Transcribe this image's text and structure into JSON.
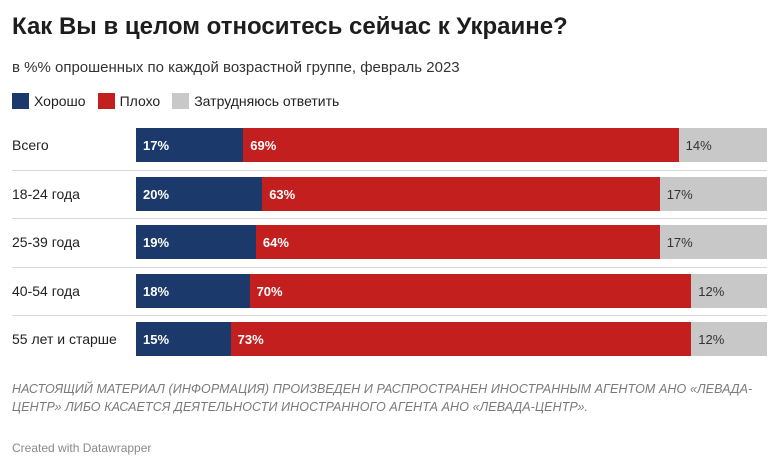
{
  "title": "Как Вы в целом относитесь сейчас к Украине?",
  "subtitle": "в %% опрошенных по каждой возрастной группе, февраль 2023",
  "colors": {
    "good": "#1b3a6b",
    "bad": "#c41f1f",
    "unsure": "#c8c8c8"
  },
  "chart_data": {
    "type": "bar",
    "orientation": "horizontal",
    "stacked": true,
    "normalized": true,
    "categories": [
      "Всего",
      "18-24 года",
      "25-39 года",
      "40-54 года",
      "55 лет и старше"
    ],
    "series": [
      {
        "name": "Хорошо",
        "values": [
          17,
          20,
          19,
          18,
          15
        ]
      },
      {
        "name": "Плохо",
        "values": [
          69,
          63,
          64,
          70,
          73
        ]
      },
      {
        "name": "Затрудняюсь ответить",
        "values": [
          14,
          17,
          17,
          12,
          12
        ]
      }
    ],
    "value_labels": [
      [
        "17%",
        "69%",
        "14%"
      ],
      [
        "20%",
        "63%",
        "17%"
      ],
      [
        "19%",
        "64%",
        "17%"
      ],
      [
        "18%",
        "70%",
        "12%"
      ],
      [
        "15%",
        "73%",
        "12%"
      ]
    ],
    "legend_position": "top-left"
  },
  "note": "НАСТОЯЩИЙ МАТЕРИАЛ (ИНФОРМАЦИЯ) ПРОИЗВЕДЕН И РАСПРОСТРАНЕН ИНОСТРАННЫМ АГЕНТОМ АНО «ЛЕВАДА-ЦЕНТР» ЛИБО КАСАЕТСЯ ДЕЯТЕЛЬНОСТИ ИНОСТРАННОГО АГЕНТА АНО «ЛЕВАДА-ЦЕНТР».",
  "credit": "Created with Datawrapper"
}
